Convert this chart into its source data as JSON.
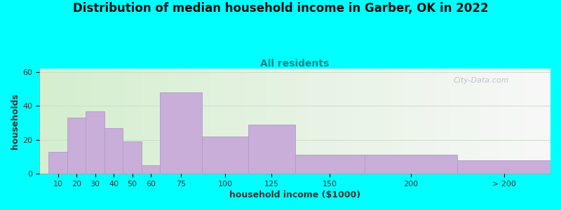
{
  "title": "Distribution of median household income in Garber, OK in 2022",
  "subtitle": "All residents",
  "xlabel": "household income ($1000)",
  "ylabel": "households",
  "background_color": "#00FFFF",
  "plot_bg_color_left": "#d4eece",
  "plot_bg_color_right": "#f8f8f8",
  "bar_color": "#c8aed8",
  "bar_edge_color": "#b09cc8",
  "bar_left_edges": [
    5,
    15,
    25,
    35,
    45,
    55,
    65,
    87.5,
    112.5,
    137.5,
    175,
    225
  ],
  "bar_widths": [
    10,
    10,
    10,
    10,
    10,
    10,
    22.5,
    25,
    25,
    37.5,
    50,
    50
  ],
  "bar_heights": [
    13,
    33,
    37,
    27,
    19,
    5,
    48,
    22,
    29,
    11,
    11,
    8
  ],
  "tick_labels": [
    "10",
    "20",
    "30",
    "40",
    "50",
    "60",
    "75",
    "100",
    "125",
    "150",
    "200",
    "> 200"
  ],
  "xlim": [
    0,
    275
  ],
  "ylim": [
    0,
    62
  ],
  "yticks": [
    0,
    20,
    40,
    60
  ],
  "title_fontsize": 12,
  "subtitle_fontsize": 10,
  "axis_label_fontsize": 9,
  "tick_fontsize": 8,
  "watermark_text": "City-Data.com",
  "watermark_color": "#b8b8c8"
}
